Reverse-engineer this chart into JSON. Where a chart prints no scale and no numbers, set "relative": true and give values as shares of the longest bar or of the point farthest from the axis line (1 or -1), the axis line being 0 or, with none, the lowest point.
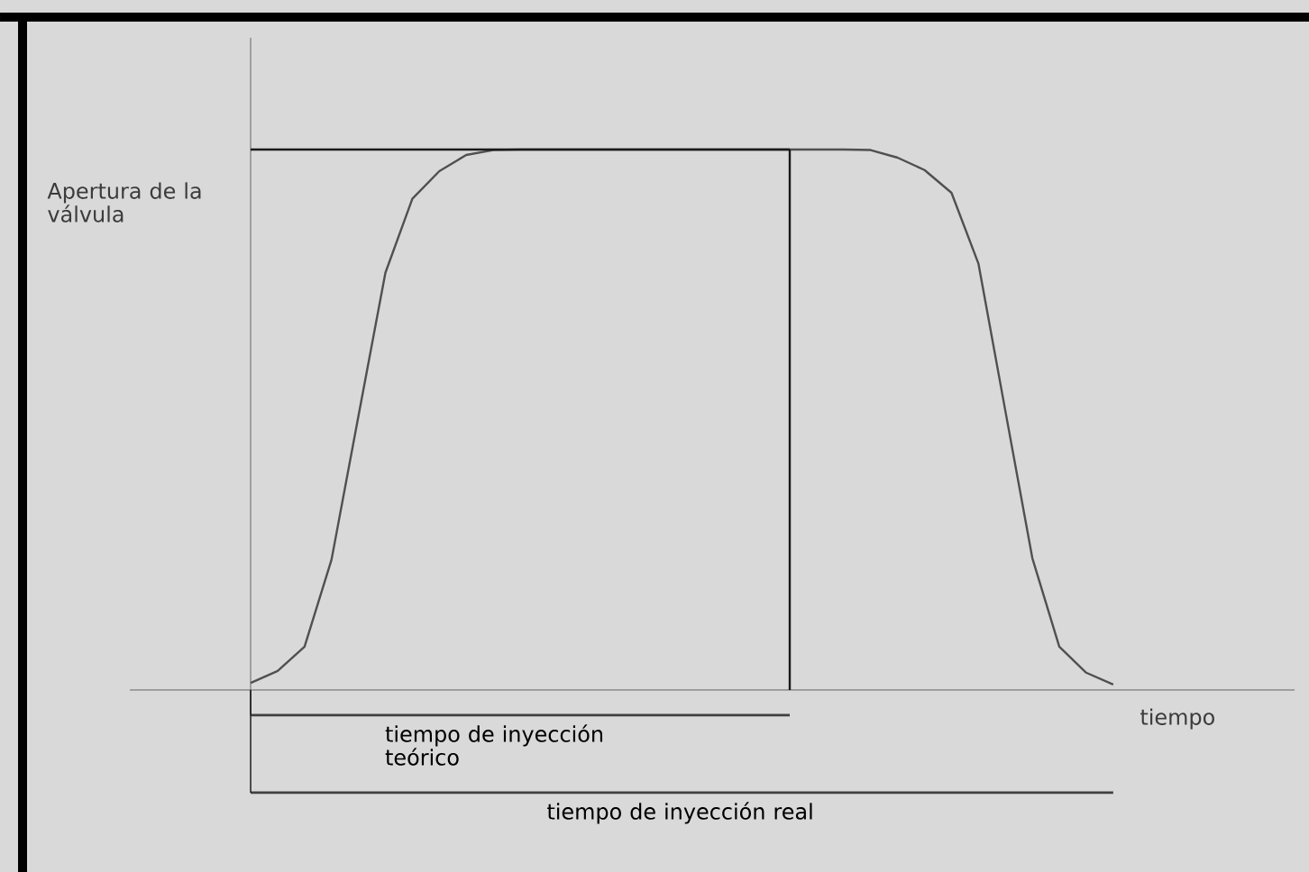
{
  "chart_data": {
    "type": "line",
    "relative": true,
    "xlabel": "tiempo",
    "ylabel": "Apertura de la válvula",
    "categories": [
      null,
      null,
      null,
      null,
      null,
      null,
      null,
      null,
      null,
      null,
      null,
      null,
      null,
      null,
      null,
      null,
      null,
      null,
      null,
      null,
      null,
      null,
      null,
      null,
      null,
      null,
      null,
      null,
      null,
      null,
      null,
      null,
      null
    ],
    "series": [
      {
        "color": "#505050",
        "values": [
          0.013,
          0.035,
          0.08,
          0.241,
          0.507,
          0.772,
          0.909,
          0.96,
          0.99,
          0.999,
          1,
          1,
          1,
          1,
          1,
          1,
          1,
          1,
          1,
          1,
          1,
          1,
          1,
          0.999,
          0.985,
          0.962,
          0.92,
          0.789,
          0.516,
          0.244,
          0.08,
          0.032,
          0.01
        ]
      },
      {
        "color": "#1a1a1a",
        "values": [
          1,
          1,
          1,
          1,
          1,
          1,
          1,
          1,
          1,
          1,
          1,
          1,
          1,
          1,
          1,
          1,
          1,
          1,
          1,
          1,
          1,
          null,
          null,
          null,
          null,
          null,
          null,
          null,
          null,
          null,
          null,
          null,
          null
        ]
      }
    ],
    "annotations": [
      "tiempo de inyección teórico",
      "tiempo de inyección real"
    ]
  }
}
